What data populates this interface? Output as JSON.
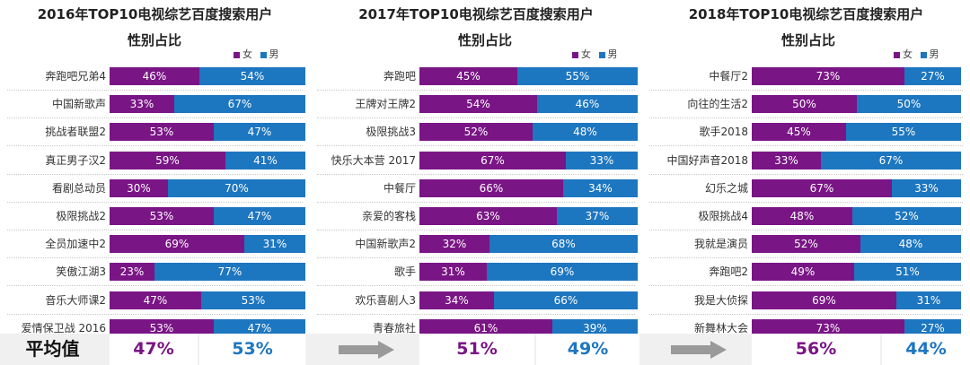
{
  "colors": {
    "female": "#7a1586",
    "male": "#1d76c0"
  },
  "legend": {
    "female_label": "女",
    "male_label": "男"
  },
  "average_label": "平均值",
  "chart_data": [
    {
      "type": "bar",
      "stacked": true,
      "orientation": "horizontal",
      "title": "2016年TOP10电视综艺百度搜索用户",
      "subtitle": "性别占比",
      "categories": [
        "奔跑吧兄弟4",
        "中国新歌声",
        "挑战者联盟2",
        "真正男子汉2",
        "看剧总动员",
        "极限挑战2",
        "全员加速中2",
        "笑傲江湖3",
        "音乐大师课2",
        "爱情保卫战 2016"
      ],
      "series": [
        {
          "name": "女",
          "values": [
            46,
            33,
            53,
            59,
            30,
            53,
            69,
            23,
            47,
            53
          ]
        },
        {
          "name": "男",
          "values": [
            54,
            67,
            47,
            41,
            70,
            47,
            31,
            77,
            53,
            47
          ]
        }
      ],
      "female_labels": [
        "46%",
        "33%",
        "53%",
        "59%",
        "30%",
        "53%",
        "69%",
        "23%",
        "47%",
        "53%"
      ],
      "male_labels": [
        "54%",
        "67%",
        "47%",
        "41%",
        "70%",
        "47%",
        "31%",
        "77%",
        "53%",
        "47%"
      ],
      "average": {
        "female": "47%",
        "male": "53%"
      },
      "xlim": [
        0,
        100
      ]
    },
    {
      "type": "bar",
      "stacked": true,
      "orientation": "horizontal",
      "title": "2017年TOP10电视综艺百度搜索用户",
      "subtitle": "性别占比",
      "categories": [
        "奔跑吧",
        "王牌对王牌2",
        "极限挑战3",
        "快乐大本营 2017",
        "中餐厅",
        "亲爱的客栈",
        "中国新歌声2",
        "歌手",
        "欢乐喜剧人3",
        "青春旅社"
      ],
      "series": [
        {
          "name": "女",
          "values": [
            45,
            54,
            52,
            67,
            66,
            63,
            32,
            31,
            34,
            61
          ]
        },
        {
          "name": "男",
          "values": [
            55,
            46,
            48,
            33,
            34,
            37,
            68,
            69,
            66,
            39
          ]
        }
      ],
      "female_labels": [
        "45%",
        "54%",
        "52%",
        "67%",
        "66%",
        "63%",
        "32%",
        "31%",
        "34%",
        "61%"
      ],
      "male_labels": [
        "55%",
        "46%",
        "48%",
        "33%",
        "34%",
        "37%",
        "68%",
        "69%",
        "66%",
        "39%"
      ],
      "average": {
        "female": "51%",
        "male": "49%"
      },
      "xlim": [
        0,
        100
      ]
    },
    {
      "type": "bar",
      "stacked": true,
      "orientation": "horizontal",
      "title": "2018年TOP10电视综艺百度搜索用户",
      "subtitle": "性别占比",
      "categories": [
        "中餐厅2",
        "向往的生活2",
        "歌手2018",
        "中国好声音2018",
        "幻乐之城",
        "极限挑战4",
        "我就是演员",
        "奔跑吧2",
        "我是大侦探",
        "新舞林大会"
      ],
      "series": [
        {
          "name": "女",
          "values": [
            73,
            50,
            45,
            33,
            67,
            48,
            52,
            49,
            69,
            73
          ]
        },
        {
          "name": "男",
          "values": [
            27,
            50,
            55,
            67,
            33,
            52,
            48,
            51,
            31,
            27
          ]
        }
      ],
      "female_labels": [
        "73%",
        "50%",
        "45%",
        "33%",
        "67%",
        "48%",
        "52%",
        "49%",
        "69%",
        "73%"
      ],
      "male_labels": [
        "27%",
        "50%",
        "55%",
        "67%",
        "33%",
        "52%",
        "48%",
        "51%",
        "31%",
        "27%"
      ],
      "average": {
        "female": "56%",
        "male": "44%"
      },
      "xlim": [
        0,
        100
      ]
    }
  ]
}
